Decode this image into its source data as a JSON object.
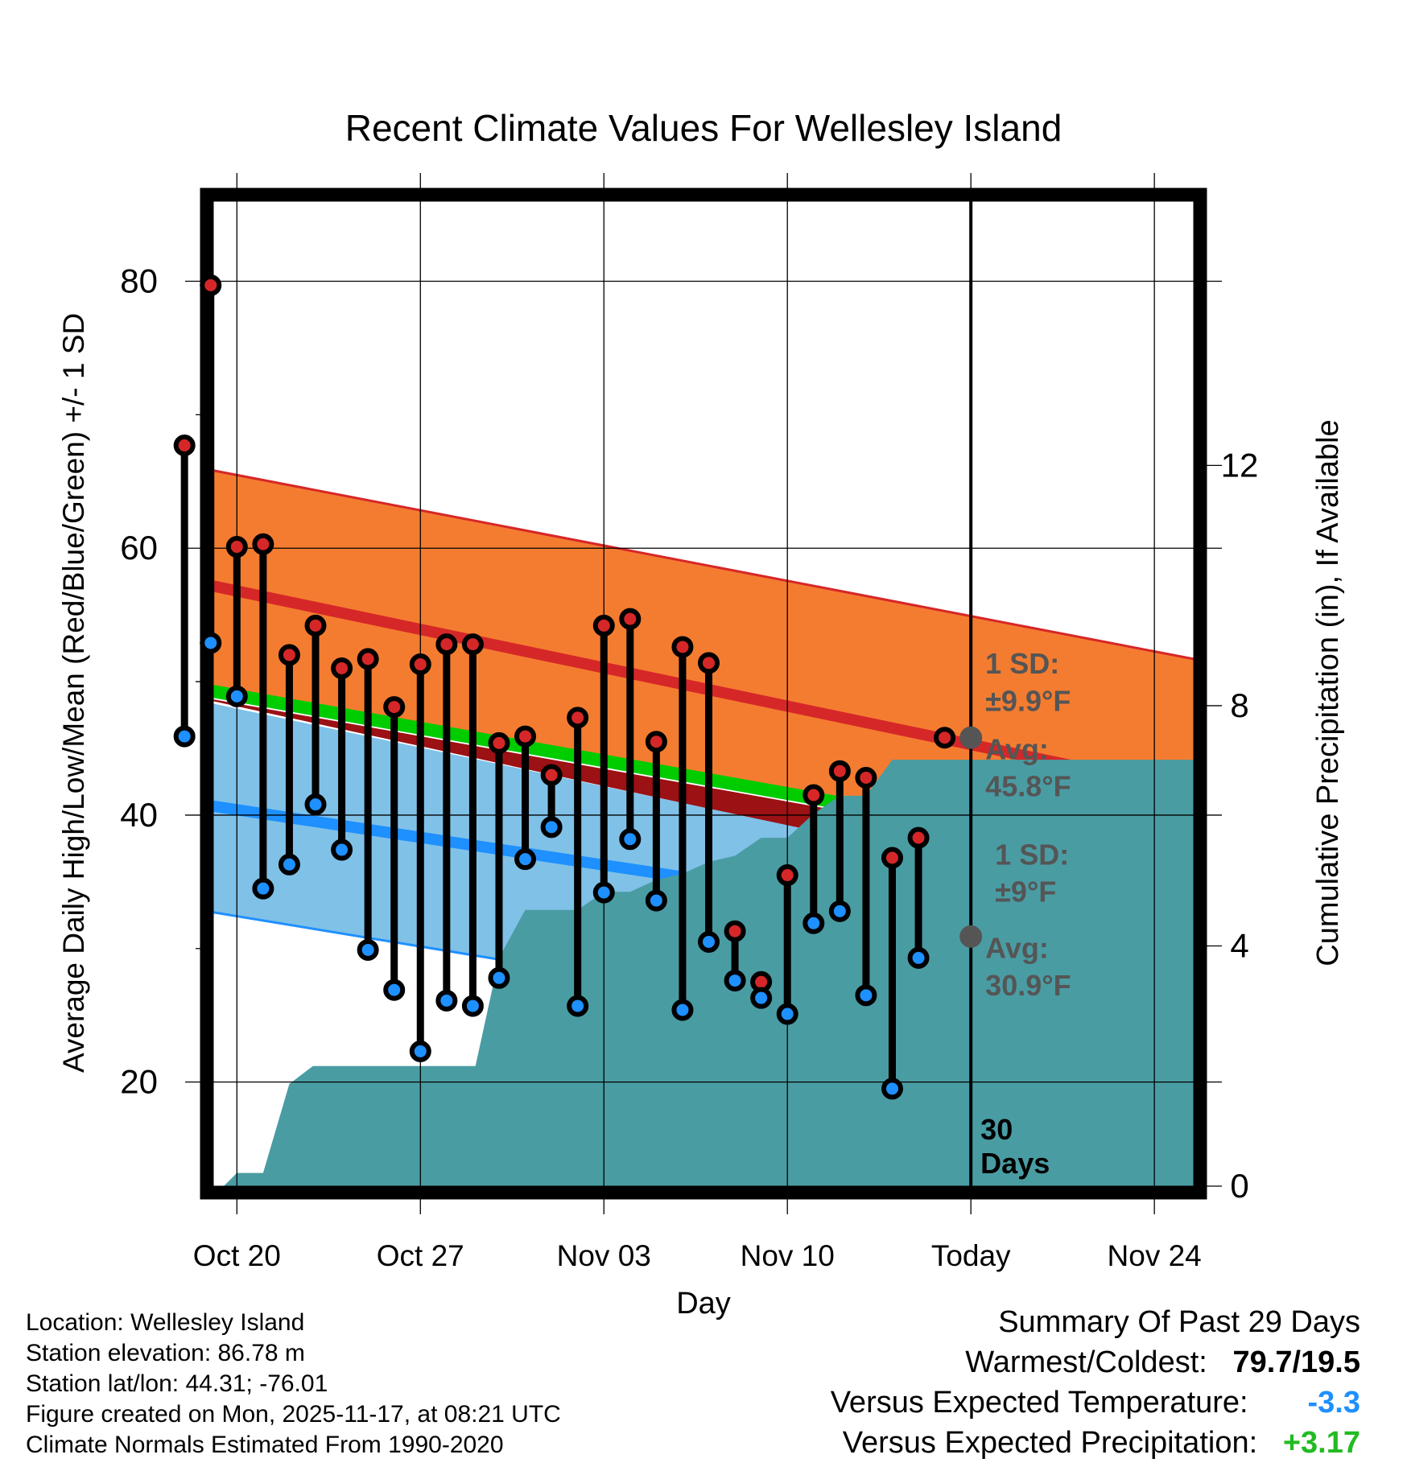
{
  "chart_data": {
    "type": "line",
    "title": "Recent Climate Values For Wellesley Island",
    "xlabel": "Day",
    "ylabel": "Average Daily High/Low/Mean (Red/Blue/Green) +/- 1 SD",
    "y2label": "Cumulative Precipitation (in), If Available",
    "xlim": [
      -0.9,
      36.5
    ],
    "ylim": [
      12.2,
      86.0
    ],
    "y2lim": [
      0,
      16.4
    ],
    "x_ticks": [
      {
        "x": 0,
        "label": "Oct 20"
      },
      {
        "x": 7,
        "label": "Oct 27"
      },
      {
        "x": 14,
        "label": "Nov 03"
      },
      {
        "x": 21,
        "label": "Nov 10"
      },
      {
        "x": 28,
        "label": "Today"
      },
      {
        "x": 35,
        "label": "Nov 24"
      }
    ],
    "y_ticks": [
      20,
      40,
      60,
      80
    ],
    "y_minor_ticks": [
      30,
      50,
      70
    ],
    "y2_ticks": [
      0,
      4,
      8,
      12
    ],
    "today_x": 28,
    "normal_bands": {
      "x": [
        -2.7,
        36.5
      ],
      "high_mean": [
        57.9,
        41.8
      ],
      "high_upper": [
        66.5,
        51.7
      ],
      "mean_line": [
        49.9,
        36.2
      ],
      "low_mean": [
        41.2,
        29.6
      ],
      "low_lower": [
        33.3,
        20.6
      ]
    },
    "series": [
      {
        "name": "High",
        "color": "#d62728",
        "x": [
          -2,
          -1,
          0,
          1,
          2,
          3,
          4,
          5,
          6,
          7,
          8,
          9,
          10,
          11,
          12,
          13,
          14,
          15,
          16,
          17,
          18,
          19,
          20,
          21,
          22,
          23,
          24,
          25,
          26,
          27
        ],
        "values": [
          67.7,
          79.7,
          60.1,
          60.3,
          52.0,
          54.2,
          51.0,
          51.7,
          48.1,
          51.3,
          52.8,
          52.8,
          45.4,
          45.9,
          43.0,
          47.3,
          54.2,
          54.7,
          45.5,
          52.6,
          51.4,
          31.3,
          27.5,
          35.5,
          41.5,
          43.3,
          42.8,
          36.8,
          38.3,
          45.8
        ]
      },
      {
        "name": "Low",
        "color": "#1e90ff",
        "x": [
          -2,
          -1,
          0,
          1,
          2,
          3,
          4,
          5,
          6,
          7,
          8,
          9,
          10,
          11,
          12,
          13,
          14,
          15,
          16,
          17,
          18,
          19,
          20,
          21,
          22,
          23,
          24,
          25,
          26
        ],
        "values": [
          45.9,
          52.9,
          48.9,
          34.5,
          36.3,
          40.8,
          37.4,
          29.9,
          26.9,
          22.3,
          26.1,
          25.7,
          27.8,
          36.7,
          39.1,
          25.7,
          34.2,
          38.2,
          33.6,
          25.4,
          30.5,
          27.6,
          26.3,
          25.1,
          31.9,
          32.8,
          26.5,
          19.5,
          29.3
        ]
      },
      {
        "name": "Cumulative Precipitation",
        "color": "#4a9ca3",
        "x": [
          -0.5,
          0,
          1,
          2,
          2.9,
          9.1,
          10,
          11,
          13,
          14,
          15,
          16,
          17,
          18,
          19,
          20,
          21,
          22,
          23,
          24,
          25,
          26,
          27,
          28,
          36.5
        ],
        "values": [
          0,
          0.22,
          0.22,
          1.7,
          2.0,
          2.0,
          3.8,
          4.6,
          4.6,
          4.9,
          4.9,
          5.1,
          5.2,
          5.4,
          5.5,
          5.8,
          5.8,
          6.2,
          6.5,
          6.5,
          7.1,
          7.1,
          7.1,
          7.1,
          7.1
        ]
      }
    ],
    "annotations": {
      "high_sd_line1": "1 SD:",
      "high_sd_line2": "±9.9°F",
      "high_avg_line1": "Avg:",
      "high_avg_line2": "45.8°F",
      "high_avg_value": 45.8,
      "low_sd_line1": "1 SD:",
      "low_sd_line2": "±9°F",
      "low_avg_line1": "Avg:",
      "low_avg_line2": "30.9°F",
      "low_avg_value": 30.9,
      "days_line1": "30",
      "days_line2": "Days"
    }
  },
  "info": {
    "location": "Location: Wellesley Island",
    "elevation": "Station elevation: 86.78 m",
    "latlon": "Station lat/lon: 44.31; -76.01",
    "created": "Figure created on Mon, 2025-11-17, at 08:21 UTC",
    "normals": "Climate Normals Estimated From 1990-2020"
  },
  "summary": {
    "title": "Summary Of Past 29 Days",
    "warmest_label": "Warmest/Coldest:",
    "warmest_value": "79.7/19.5",
    "temp_label": "Versus Expected Temperature:",
    "temp_value": "-3.3",
    "temp_color": "#1e90ff",
    "precip_label": "Versus Expected Precipitation:",
    "precip_value": "+3.17",
    "precip_color": "#22bb22"
  }
}
